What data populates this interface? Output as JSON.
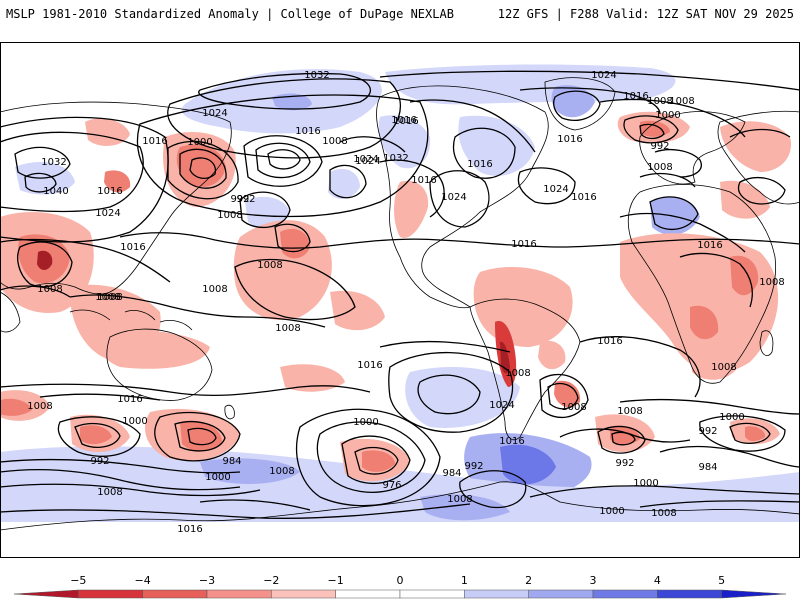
{
  "header": {
    "title_left": "MSLP 1981-2010 Standardized Anomaly | College of DuPage NEXLAB",
    "title_right": "12Z GFS | F288 Valid: 12Z SAT NOV 29 2025"
  },
  "colorbar": {
    "ticks": [
      "−5",
      "−4",
      "−3",
      "−2",
      "−1",
      "0",
      "1",
      "2",
      "3",
      "4",
      "5"
    ],
    "colors": [
      "#b2182b",
      "#d6333a",
      "#e8605a",
      "#f4918a",
      "#fbc2bb",
      "#ffffff",
      "#ffffff",
      "#c8cdf8",
      "#a0a8f0",
      "#6f7ae6",
      "#3c47d8",
      "#1a1fc8"
    ]
  },
  "colors": {
    "positive_light": "#d3d7fa",
    "positive_mid": "#a9b0f2",
    "positive_strong": "#6c77e8",
    "negative_light": "#f9b3a8",
    "negative_mid": "#ef7f72",
    "negative_strong": "#d93a3a",
    "negative_extreme": "#a51f26",
    "coast": "#000000",
    "isobar": "#000000"
  },
  "isobar_labels": [
    {
      "id": "l1",
      "text": "1032"
    },
    {
      "id": "l2",
      "text": "1024"
    },
    {
      "id": "l3",
      "text": "1016"
    },
    {
      "id": "l4",
      "text": "1016"
    },
    {
      "id": "l5",
      "text": "1008"
    },
    {
      "id": "l6",
      "text": "1000"
    },
    {
      "id": "l7",
      "text": "992"
    },
    {
      "id": "l8",
      "text": "1008"
    },
    {
      "id": "l9",
      "text": "1024"
    },
    {
      "id": "l10",
      "text": "1016"
    },
    {
      "id": "l11",
      "text": "1032"
    },
    {
      "id": "l12",
      "text": "1040"
    },
    {
      "id": "l13",
      "text": "1016"
    },
    {
      "id": "l14",
      "text": "1024"
    },
    {
      "id": "l15",
      "text": "1008"
    },
    {
      "id": "l16",
      "text": "992"
    },
    {
      "id": "l17",
      "text": "1016"
    },
    {
      "id": "l18",
      "text": "1008"
    },
    {
      "id": "l19",
      "text": "1024"
    },
    {
      "id": "l20",
      "text": "1032"
    },
    {
      "id": "l21",
      "text": "1016"
    },
    {
      "id": "l22",
      "text": "1016"
    },
    {
      "id": "l23",
      "text": "1016"
    },
    {
      "id": "l24",
      "text": "1024"
    },
    {
      "id": "l25",
      "text": "1024"
    },
    {
      "id": "l26",
      "text": "1016"
    },
    {
      "id": "l27",
      "text": "1016"
    },
    {
      "id": "l28",
      "text": "1008"
    },
    {
      "id": "l29",
      "text": "1008"
    },
    {
      "id": "l30",
      "text": "1008"
    },
    {
      "id": "l31",
      "text": "1016"
    },
    {
      "id": "l32",
      "text": "1008"
    },
    {
      "id": "l33",
      "text": "1016"
    },
    {
      "id": "l34",
      "text": "1024"
    },
    {
      "id": "l35",
      "text": "1008"
    },
    {
      "id": "l36",
      "text": "1008"
    },
    {
      "id": "l37",
      "text": "1008"
    },
    {
      "id": "l38",
      "text": "1016"
    },
    {
      "id": "l39",
      "text": "1008"
    },
    {
      "id": "l40",
      "text": "1008"
    },
    {
      "id": "l41",
      "text": "1016"
    },
    {
      "id": "l42",
      "text": "1000"
    },
    {
      "id": "l43",
      "text": "992"
    },
    {
      "id": "l44",
      "text": "992"
    },
    {
      "id": "l45",
      "text": "984"
    },
    {
      "id": "l46",
      "text": "1000"
    },
    {
      "id": "l47",
      "text": "1008"
    },
    {
      "id": "l48",
      "text": "1016"
    },
    {
      "id": "l49",
      "text": "1008"
    },
    {
      "id": "l50",
      "text": "1000"
    },
    {
      "id": "l51",
      "text": "976"
    },
    {
      "id": "l52",
      "text": "984"
    },
    {
      "id": "l53",
      "text": "992"
    },
    {
      "id": "l54",
      "text": "1000"
    },
    {
      "id": "l55",
      "text": "1008"
    },
    {
      "id": "l56",
      "text": "1008"
    },
    {
      "id": "l57",
      "text": "1024"
    },
    {
      "id": "l58",
      "text": "1016"
    },
    {
      "id": "l59",
      "text": "1008"
    },
    {
      "id": "l60",
      "text": "1008"
    },
    {
      "id": "l61",
      "text": "1008"
    },
    {
      "id": "l62",
      "text": "992"
    },
    {
      "id": "l63",
      "text": "984"
    },
    {
      "id": "l64",
      "text": "1000"
    },
    {
      "id": "l65",
      "text": "1008"
    },
    {
      "id": "l66",
      "text": "1000"
    },
    {
      "id": "l67",
      "text": "992"
    },
    {
      "id": "l68",
      "text": "1016"
    },
    {
      "id": "l69",
      "text": "1000"
    },
    {
      "id": "l70",
      "text": "1016"
    }
  ]
}
